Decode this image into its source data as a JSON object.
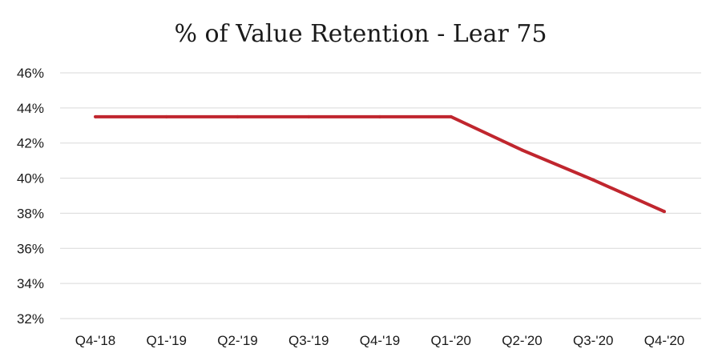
{
  "chart_data": {
    "type": "line",
    "title": "% of Value Retention - Lear 75",
    "xlabel": "",
    "ylabel": "",
    "categories": [
      "Q4-'18",
      "Q1-'19",
      "Q2-'19",
      "Q3-'19",
      "Q4-'19",
      "Q1-'20",
      "Q2-'20",
      "Q3-'20",
      "Q4-'20"
    ],
    "series": [
      {
        "values": [
          43.5,
          43.5,
          43.5,
          43.5,
          43.5,
          43.5,
          41.6,
          39.9,
          38.1
        ],
        "color": "#c0262e"
      }
    ],
    "ylim": [
      32,
      46
    ],
    "yticks": [
      32,
      34,
      36,
      38,
      40,
      42,
      44,
      46
    ],
    "ytick_labels": [
      "32%",
      "34%",
      "36%",
      "38%",
      "40%",
      "42%",
      "44%",
      "46%"
    ],
    "grid": "horizontal",
    "legend": "none"
  }
}
